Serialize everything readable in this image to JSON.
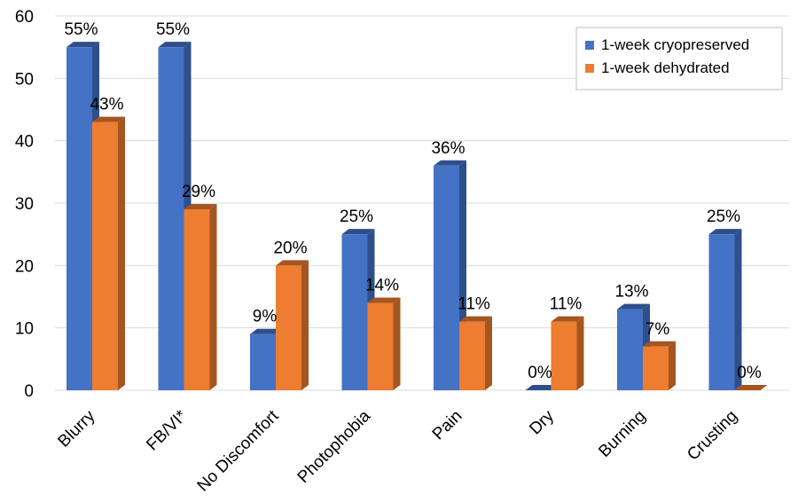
{
  "chart_data": {
    "type": "bar",
    "title": "",
    "xlabel": "",
    "ylabel": "",
    "ylim": [
      0,
      60
    ],
    "yticks": [
      0,
      10,
      20,
      30,
      40,
      50,
      60
    ],
    "grid": true,
    "legend_position": "top-right",
    "categories": [
      "Blurry",
      "FB/VI*",
      "No Discomfort",
      "Photophobia",
      "Pain",
      "Dry",
      "Burning",
      "Crusting"
    ],
    "series": [
      {
        "name": "1-week cryopreserved",
        "color": "#4472C4",
        "side_color": "#2E4F8A",
        "values": [
          55,
          55,
          9,
          25,
          36,
          0,
          13,
          25
        ],
        "labels": [
          "55%",
          "55%",
          "9%",
          "25%",
          "36%",
          "0%",
          "13%",
          "25%"
        ]
      },
      {
        "name": "1-week dehydrated",
        "color": "#ED7D31",
        "side_color": "#A5551F",
        "values": [
          43,
          29,
          20,
          14,
          11,
          11,
          7,
          0
        ],
        "labels": [
          "43%",
          "29%",
          "20%",
          "14%",
          "11%",
          "11%",
          "7%",
          "0%"
        ]
      }
    ]
  }
}
